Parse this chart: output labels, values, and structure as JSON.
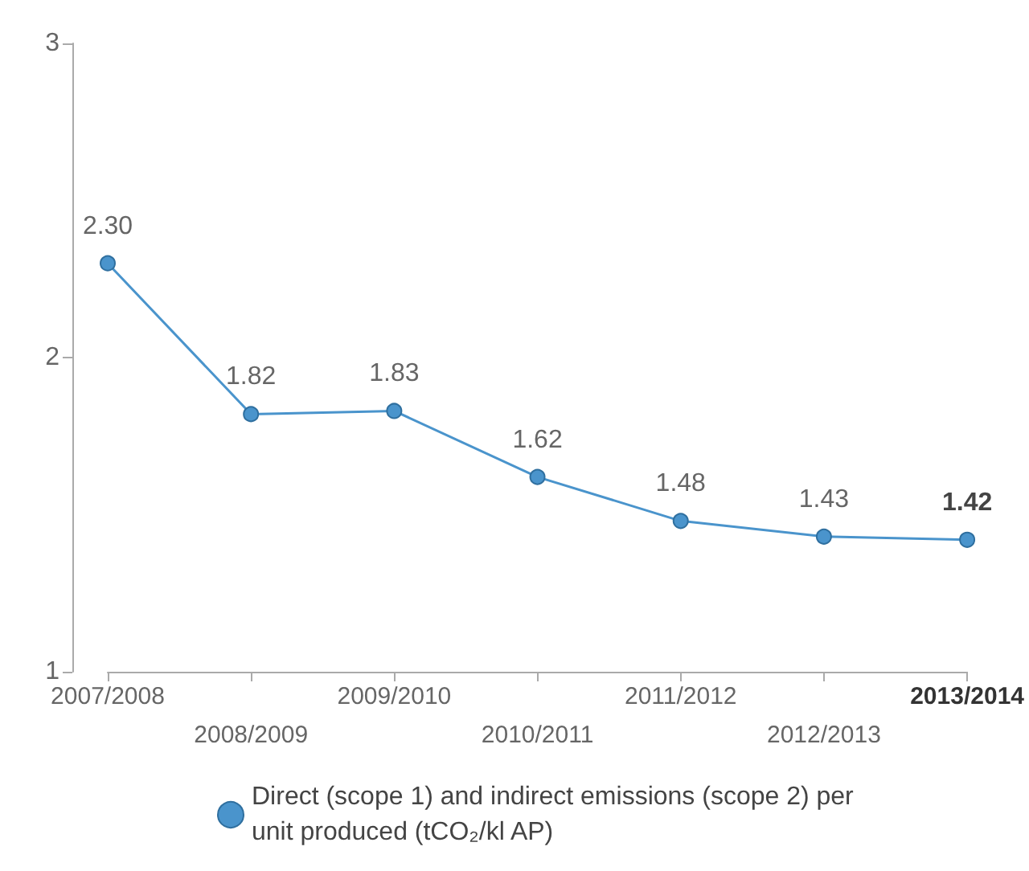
{
  "chart_data": {
    "type": "line",
    "categories": [
      "2007/2008",
      "2008/2009",
      "2009/2010",
      "2010/2011",
      "2011/2012",
      "2012/2013",
      "2013/2014"
    ],
    "series": [
      {
        "name": "Direct (scope 1) and indirect emissions (scope 2) per unit produced (tCO₂/kl AP)",
        "color": "#4a94cc",
        "values": [
          2.3,
          1.82,
          1.83,
          1.62,
          1.48,
          1.43,
          1.42
        ],
        "value_labels": [
          "2.30",
          "1.82",
          "1.83",
          "1.62",
          "1.48",
          "1.43",
          "1.42"
        ]
      }
    ],
    "ylim": [
      1,
      3
    ],
    "yticks": [
      1,
      2,
      3
    ],
    "grid": false,
    "legend": "bottom",
    "marker": "circle",
    "line_style": "solid"
  }
}
